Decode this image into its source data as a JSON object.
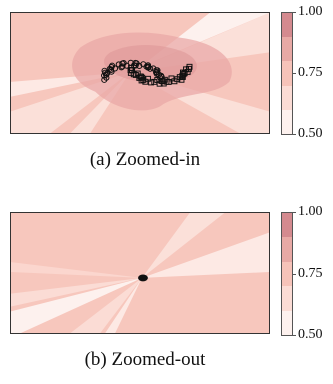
{
  "chart_data": [
    {
      "type": "heatmap",
      "caption": "(a) Zoomed-in",
      "colorbar": {
        "ticks": [
          "1.00",
          "0.75",
          "0.50"
        ],
        "range": [
          0.5,
          1.0
        ]
      },
      "colors": {
        "low": "#fdf1ee",
        "mid_low": "#fbdcd5",
        "mid": "#f6c3b9",
        "mid_high": "#e8a9a5",
        "high": "#d48a8f"
      },
      "markers": "circles-and-squares"
    },
    {
      "type": "heatmap",
      "caption": "(b) Zoomed-out",
      "colorbar": {
        "ticks": [
          "1.00",
          "0.75",
          "0.50"
        ],
        "range": [
          0.5,
          1.0
        ]
      },
      "colors": {
        "low": "#fdf1ee",
        "mid_low": "#fbdcd5",
        "mid": "#f6c3b9",
        "mid_high": "#e8a9a5",
        "high": "#d48a8f"
      },
      "markers": "dense-cluster"
    }
  ]
}
